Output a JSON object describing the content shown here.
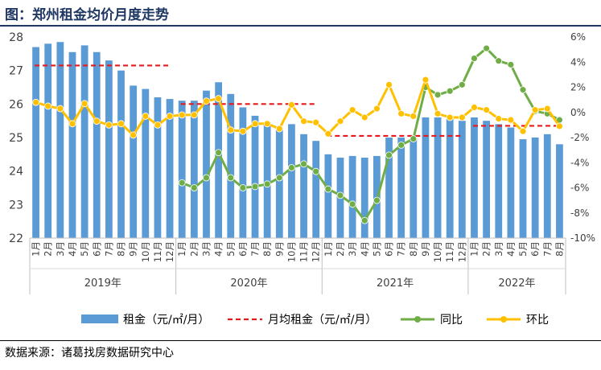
{
  "title": "图：郑州租金均价月度走势",
  "source": "数据来源：诸葛找房数据研究中心",
  "colors": {
    "bar": "#5b9bd5",
    "avg_line": "#e8191b",
    "yoy_line": "#70ad47",
    "mom_line": "#ffc000",
    "axis_text": "#404040",
    "grid": "#d9d9d9"
  },
  "chart_data": {
    "type": "bar",
    "years": [
      "2019年",
      "2020年",
      "2021年",
      "2022年"
    ],
    "categories": [
      "1月",
      "2月",
      "3月",
      "4月",
      "5月",
      "6月",
      "7月",
      "8月",
      "9月",
      "10月",
      "11月",
      "12月",
      "1月",
      "2月",
      "3月",
      "4月",
      "5月",
      "6月",
      "7月",
      "8月",
      "9月",
      "10月",
      "11月",
      "12月",
      "1月",
      "2月",
      "3月",
      "4月",
      "5月",
      "6月",
      "7月",
      "8月",
      "9月",
      "10月",
      "11月",
      "12月",
      "1月",
      "2月",
      "3月",
      "4月",
      "5月",
      "6月",
      "7月",
      "8月"
    ],
    "y_left": {
      "min": 22,
      "max": 28,
      "ticks": [
        22,
        23,
        24,
        25,
        26,
        27,
        28
      ]
    },
    "y_right": {
      "min": -10,
      "max": 6,
      "ticks": [
        -10,
        -8,
        -6,
        -4,
        -2,
        0,
        2,
        4,
        6
      ],
      "tick_labels": [
        "-10%",
        "-8%",
        "-6%",
        "-4%",
        "-2%",
        "0%",
        "2%",
        "4%",
        "6%"
      ]
    },
    "series": [
      {
        "name": "租金（元/㎡/月）",
        "kind": "bar",
        "axis": "left",
        "values": [
          27.7,
          27.8,
          27.85,
          27.55,
          27.75,
          27.55,
          27.3,
          27.0,
          26.55,
          26.45,
          26.2,
          26.15,
          26.1,
          26.1,
          26.4,
          26.65,
          26.3,
          25.9,
          25.65,
          25.45,
          25.3,
          25.4,
          25.1,
          24.9,
          24.5,
          24.4,
          24.45,
          24.4,
          24.45,
          25.0,
          25.0,
          25.0,
          25.6,
          25.6,
          25.55,
          25.5,
          25.6,
          25.5,
          25.4,
          25.3,
          24.95,
          25.0,
          25.1,
          24.8
        ]
      },
      {
        "name": "月均租金（元/㎡/月）",
        "kind": "dashed-segments",
        "axis": "left",
        "segments": [
          {
            "year": "2019年",
            "value": 27.15
          },
          {
            "year": "2020年",
            "value": 26.0
          },
          {
            "year": "2021年",
            "value": 25.05
          },
          {
            "year": "2022年",
            "value": 25.35
          }
        ]
      },
      {
        "name": "同比",
        "kind": "line",
        "axis": "right",
        "values": [
          null,
          null,
          null,
          null,
          null,
          null,
          null,
          null,
          null,
          null,
          null,
          null,
          -5.6,
          -6.0,
          -5.2,
          -3.2,
          -5.2,
          -6.0,
          -5.9,
          -5.7,
          -5.2,
          -4.4,
          -4.1,
          -4.7,
          -6.1,
          -6.6,
          -7.3,
          -8.6,
          -7.0,
          -3.4,
          -2.6,
          -2.1,
          2.0,
          1.4,
          1.7,
          2.2,
          4.3,
          5.1,
          4.1,
          3.8,
          1.8,
          0.1,
          -0.1,
          -0.6
        ]
      },
      {
        "name": "环比",
        "kind": "line",
        "axis": "right",
        "values": [
          0.8,
          0.5,
          0.3,
          -0.9,
          0.7,
          -0.7,
          -1.0,
          -0.9,
          -1.8,
          -0.3,
          -1.0,
          -0.3,
          -0.2,
          -0.2,
          0.9,
          1.1,
          -1.4,
          -1.5,
          -0.9,
          -0.9,
          -1.3,
          0.6,
          -0.7,
          -0.8,
          -1.7,
          -0.7,
          0.2,
          -0.4,
          0.3,
          2.2,
          -0.1,
          -0.3,
          2.6,
          -0.1,
          -0.4,
          -0.4,
          0.4,
          0.2,
          -0.5,
          -0.6,
          -1.5,
          0.2,
          0.3,
          -1.1
        ]
      }
    ],
    "legend": [
      "租金（元/㎡/月）",
      "月均租金（元/㎡/月）",
      "同比",
      "环比"
    ],
    "legend_position": "bottom",
    "grid": false
  }
}
